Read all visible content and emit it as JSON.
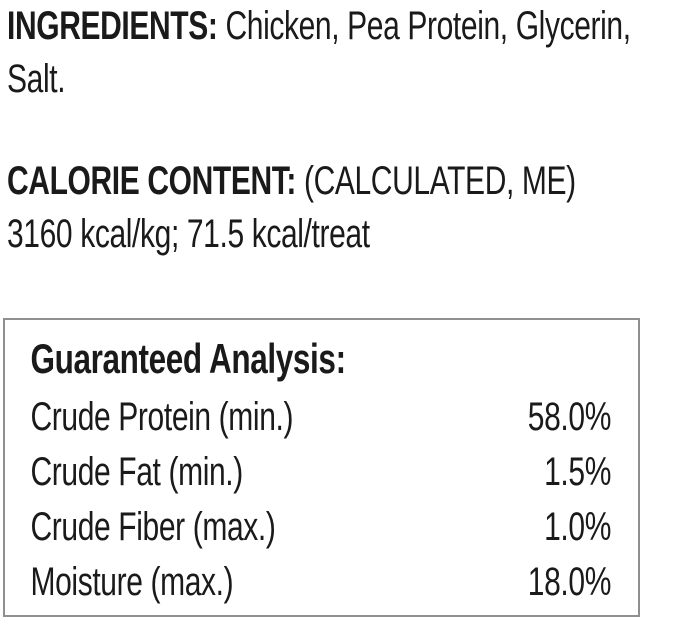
{
  "ingredients": {
    "label": "INGREDIENTS:",
    "text": " Chicken, Pea Protein, Glycerin, Salt."
  },
  "calorie_content": {
    "label": "CALORIE CONTENT:",
    "qualifier": " (CALCULATED, ME)",
    "value_line": "3160 kcal/kg; 71.5 kcal/treat"
  },
  "guaranteed_analysis": {
    "heading": "Guaranteed Analysis:",
    "rows": [
      {
        "label": "Crude Protein (min.)",
        "value": "58.0%"
      },
      {
        "label": "Crude Fat (min.)",
        "value": "1.5%"
      },
      {
        "label": "Crude Fiber (max.)",
        "value": "1.0%"
      },
      {
        "label": "Moisture (max.)",
        "value": "18.0%"
      }
    ]
  },
  "colors": {
    "text": "#1a1a1a",
    "box_border": "#8f8f8f",
    "background": "#ffffff"
  }
}
